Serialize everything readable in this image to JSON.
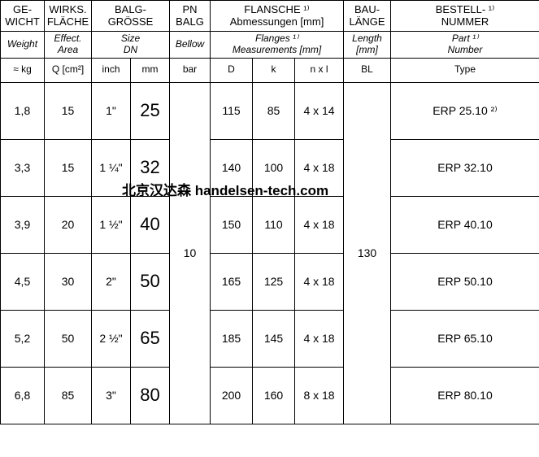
{
  "columns": {
    "widths": [
      54,
      58,
      48,
      48,
      50,
      52,
      52,
      60,
      58,
      180
    ],
    "weight": {
      "de": "GE-\nWICHT",
      "en": "Weight",
      "unit": "≈ kg"
    },
    "area": {
      "de": "WIRKS.\nFLÄCHE",
      "en": "Effect.\nArea",
      "unit": "Q [cm²]"
    },
    "size": {
      "de": "BALG-\nGRÖSSE",
      "en": "Size\nDN",
      "unit_inch": "inch",
      "unit_mm": "mm"
    },
    "pn": {
      "de": "PN\nBALG",
      "en": "Bellow",
      "unit": "bar"
    },
    "flange": {
      "de": "FLANSCHE ¹⁾\nAbmessungen [mm]",
      "en": "Flanges ¹⁾\nMeasurements [mm]",
      "unit_D": "D",
      "unit_k": "k",
      "unit_nxl": "n x l"
    },
    "length": {
      "de": "BAU-\nLÄNGE",
      "en": "Length\n[mm]",
      "unit": "BL"
    },
    "number": {
      "de": "BESTELL- ¹⁾\nNUMMER",
      "en": "Part ¹⁾\nNumber",
      "unit": "Type"
    }
  },
  "shared": {
    "pn": "10",
    "length": "130"
  },
  "rows": [
    {
      "weight": "1,8",
      "area": "15",
      "inch": "1\"",
      "mm": "25",
      "D": "115",
      "k": "85",
      "nxl": "4 x 14",
      "num": "ERP 25.10 ²⁾"
    },
    {
      "weight": "3,3",
      "area": "15",
      "inch": "1 ¼\"",
      "mm": "32",
      "D": "140",
      "k": "100",
      "nxl": "4 x 18",
      "num": "ERP 32.10"
    },
    {
      "weight": "3,9",
      "area": "20",
      "inch": "1 ½\"",
      "mm": "40",
      "D": "150",
      "k": "110",
      "nxl": "4 x 18",
      "num": "ERP 40.10"
    },
    {
      "weight": "4,5",
      "area": "30",
      "inch": "2\"",
      "mm": "50",
      "D": "165",
      "k": "125",
      "nxl": "4 x 18",
      "num": "ERP 50.10"
    },
    {
      "weight": "5,2",
      "area": "50",
      "inch": "2 ½\"",
      "mm": "65",
      "D": "185",
      "k": "145",
      "nxl": "4 x 18",
      "num": "ERP 65.10"
    },
    {
      "weight": "6,8",
      "area": "85",
      "inch": "3\"",
      "mm": "80",
      "D": "200",
      "k": "160",
      "nxl": "8 x 18",
      "num": "ERP 80.10"
    }
  ],
  "watermark": "北京汉达森 handelsen-tech.com"
}
